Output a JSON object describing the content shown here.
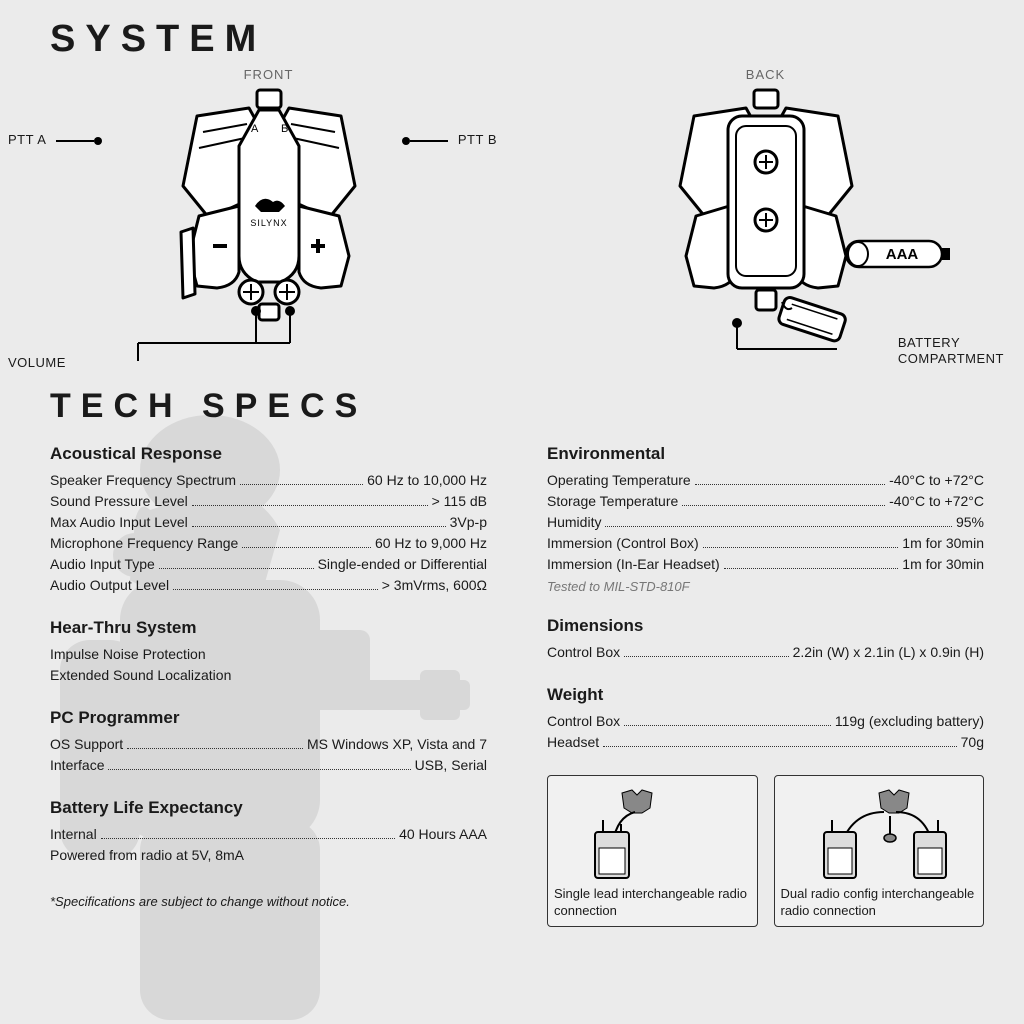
{
  "title": "SYSTEM",
  "tech_title": "TECH SPECS",
  "views": {
    "front": "FRONT",
    "back": "BACK"
  },
  "callouts": {
    "ptt_a": "PTT A",
    "ptt_b": "PTT B",
    "volume": "VOLUME",
    "battery": "BATTERY\nCOMPARTMENT",
    "aaa": "AAA",
    "brand": "SILYNX",
    "ab_a": "A",
    "ab_b": "B"
  },
  "spec_groups_left": [
    {
      "heading": "Acoustical Response",
      "rows": [
        {
          "label": "Speaker Frequency Spectrum",
          "value": "60 Hz to 10,000 Hz"
        },
        {
          "label": "Sound Pressure Level",
          "value": "> 115 dB"
        },
        {
          "label": "Max Audio Input Level",
          "value": "3Vp-p"
        },
        {
          "label": "Microphone Frequency Range",
          "value": "60 Hz to 9,000 Hz"
        },
        {
          "label": "Audio Input Type",
          "value": "Single-ended or Differential"
        },
        {
          "label": "Audio Output Level",
          "value": "> 3mVrms, 600Ω"
        }
      ]
    },
    {
      "heading": "Hear-Thru System",
      "plain": [
        "Impulse Noise Protection",
        "Extended Sound Localization"
      ]
    },
    {
      "heading": "PC Programmer",
      "rows": [
        {
          "label": "OS Support",
          "value": "MS Windows XP, Vista and 7"
        },
        {
          "label": "Interface",
          "value": "USB, Serial"
        }
      ]
    },
    {
      "heading": "Battery Life Expectancy",
      "rows": [
        {
          "label": "Internal",
          "value": "40 Hours AAA"
        }
      ],
      "plain_after": [
        "Powered from radio at 5V, 8mA"
      ]
    }
  ],
  "spec_groups_right": [
    {
      "heading": "Environmental",
      "rows": [
        {
          "label": "Operating Temperature",
          "value": "-40°C to +72°C"
        },
        {
          "label": "Storage Temperature",
          "value": "-40°C to +72°C"
        },
        {
          "label": "Humidity",
          "value": "95%"
        },
        {
          "label": "Immersion (Control Box)",
          "value": "1m for 30min"
        },
        {
          "label": "Immersion (In-Ear Headset)",
          "value": "1m for 30min"
        }
      ],
      "note": "Tested to MIL-STD-810F"
    },
    {
      "heading": "Dimensions",
      "rows": [
        {
          "label": "Control Box ",
          "value": "2.2in (W) x 2.1in (L) x 0.9in (H)"
        }
      ]
    },
    {
      "heading": "Weight",
      "rows": [
        {
          "label": "Control Box",
          "value": "119g (excluding battery)"
        },
        {
          "label": "Headset",
          "value": "70g"
        }
      ]
    }
  ],
  "configs": [
    {
      "caption": "Single lead interchangeable radio connection"
    },
    {
      "caption": "Dual radio config interchangeable radio connection"
    }
  ],
  "footnote": "*Specifications are subject to change without notice.",
  "colors": {
    "bg": "#ebebeb",
    "text": "#1a1a1a",
    "muted": "#777",
    "line": "#000"
  }
}
